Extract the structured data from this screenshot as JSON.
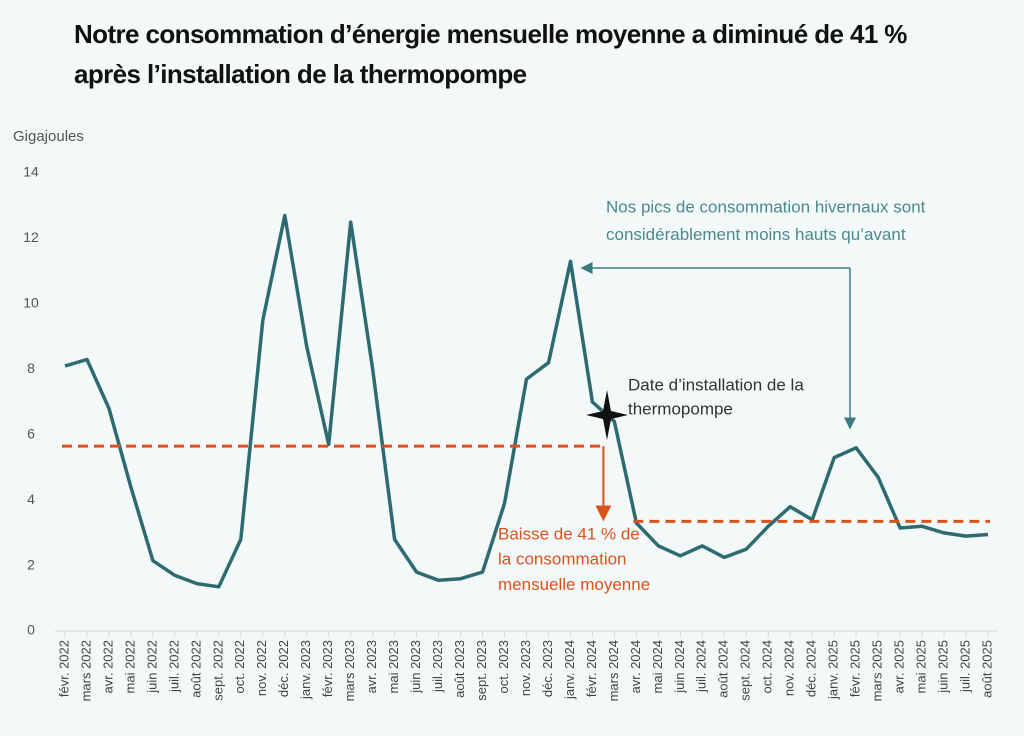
{
  "chart_data": {
    "type": "line",
    "title": "Notre consommation d’énergie mensuelle moyenne a diminué de 41 % après l’installation de la thermopompe",
    "y_label": "Gigajoules",
    "categories": [
      "févr. 2022",
      "mars 2022",
      "avr. 2022",
      "mai 2022",
      "juin 2022",
      "juil. 2022",
      "août 2022",
      "sept. 2022",
      "oct. 2022",
      "nov. 2022",
      "déc. 2022",
      "janv. 2023",
      "févr. 2023",
      "mars 2023",
      "avr. 2023",
      "mai 2023",
      "juin 2023",
      "juil. 2023",
      "août 2023",
      "sept. 2023",
      "oct. 2023",
      "nov. 2023",
      "déc. 2023",
      "janv. 2024",
      "févr. 2024",
      "mars 2024",
      "avr. 2024",
      "mai 2024",
      "juin 2024",
      "juil. 2024",
      "août 2024",
      "sept. 2024",
      "oct. 2024",
      "nov. 2024",
      "déc. 2024",
      "janv. 2025",
      "févr. 2025",
      "mars 2025",
      "avr. 2025",
      "mai 2025",
      "juin 2025",
      "juil. 2025",
      "août 2025"
    ],
    "series": [
      {
        "color": "#2e6b70",
        "values": [
          8.1,
          8.3,
          6.8,
          4.4,
          2.15,
          1.7,
          1.45,
          1.35,
          2.8,
          9.5,
          12.7,
          8.7,
          5.7,
          12.5,
          8.0,
          2.8,
          1.8,
          1.55,
          1.6,
          1.8,
          3.9,
          7.7,
          8.2,
          11.3,
          7.0,
          6.4,
          3.3,
          2.6,
          2.3,
          2.6,
          2.25,
          2.5,
          3.2,
          3.8,
          3.4,
          5.3,
          5.6,
          4.7,
          3.15,
          3.2,
          3.0,
          2.9,
          2.95
        ]
      }
    ],
    "reference_lines": [
      {
        "value": 5.65,
        "color": "#d9531e"
      },
      {
        "value": 3.35,
        "color": "#d9531e"
      }
    ],
    "ylim": [
      0,
      14
    ],
    "yticks": [
      0,
      2,
      4,
      6,
      8,
      10,
      12,
      14
    ],
    "grid": false,
    "annotations": [
      {
        "lines": [
          "Nos pics de consommation hivernaux sont",
          "considérablement moins hauts qu’avant"
        ],
        "color": "#4a8a8f"
      },
      {
        "lines": [
          "Date d’installation de la",
          "thermopompe"
        ],
        "color": "#333333"
      },
      {
        "lines": [
          "Baisse de 41 % de",
          "la consommation",
          "mensuelle moyenne"
        ],
        "color": "#d9531e"
      }
    ]
  }
}
